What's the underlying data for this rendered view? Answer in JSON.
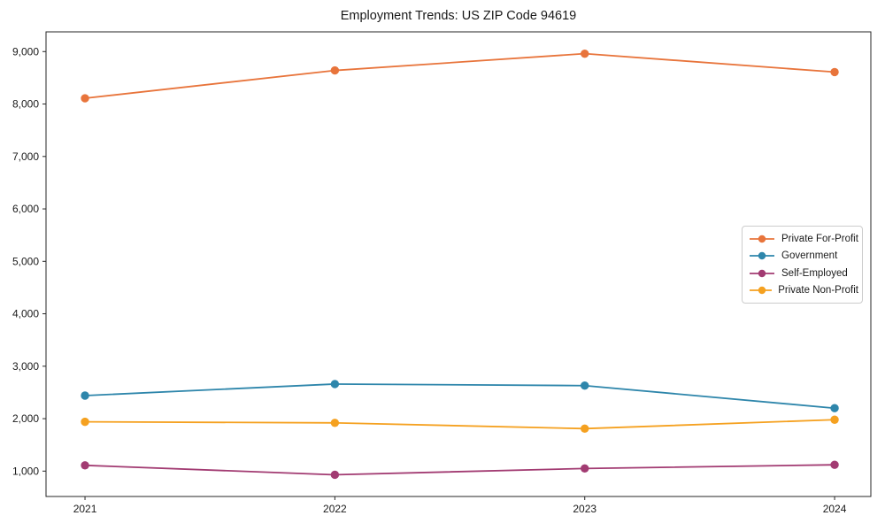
{
  "chart_data": {
    "type": "line",
    "title": "Employment Trends: US ZIP Code 94619",
    "xlabel": "",
    "ylabel": "",
    "categories": [
      2021,
      2022,
      2023,
      2024
    ],
    "x_tick_labels": [
      "2021",
      "2022",
      "2023",
      "2024"
    ],
    "y_ticks": [
      1000,
      2000,
      3000,
      4000,
      5000,
      6000,
      7000,
      8000,
      9000
    ],
    "y_tick_labels": [
      "1,000",
      "2,000",
      "3,000",
      "4,000",
      "5,000",
      "6,000",
      "7,000",
      "8,000",
      "9,000"
    ],
    "xlim": [
      2020.844,
      2024.145
    ],
    "ylim": [
      516,
      9376
    ],
    "grid": false,
    "legend_position": "center-right",
    "axis_color": "#262626",
    "series": [
      {
        "name": "Private For-Profit",
        "color": "#E8743B",
        "values": [
          8110,
          8640,
          8960,
          8610
        ]
      },
      {
        "name": "Government",
        "color": "#2E86AB",
        "values": [
          2440,
          2660,
          2630,
          2200
        ]
      },
      {
        "name": "Self-Employed",
        "color": "#A23B72",
        "values": [
          1110,
          930,
          1050,
          1120
        ]
      },
      {
        "name": "Private Non-Profit",
        "color": "#F5A120",
        "values": [
          1940,
          1920,
          1810,
          1980
        ]
      }
    ]
  }
}
